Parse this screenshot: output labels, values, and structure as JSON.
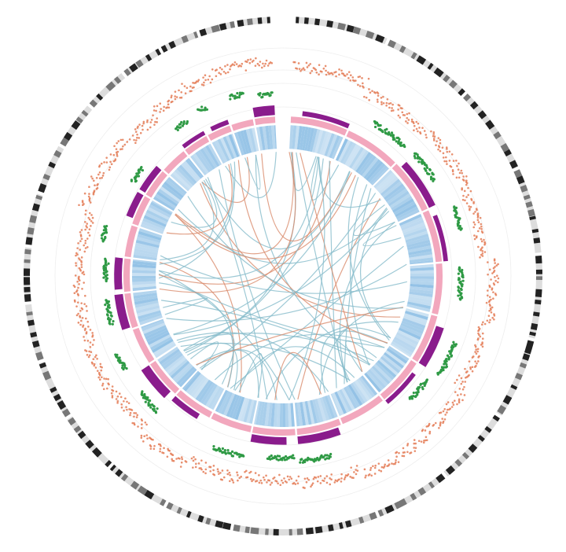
{
  "chart_data": {
    "type": "circos",
    "tracks": [
      {
        "color": "#e2744c"
      },
      {
        "color": "#2f9a45"
      },
      {
        "color": "#8a1c8c"
      },
      {
        "color": "#f2a7bd"
      },
      {
        "color": "#93c2e6"
      }
    ],
    "link_colors": [
      "#86bccb",
      "#d98b6c"
    ]
  }
}
